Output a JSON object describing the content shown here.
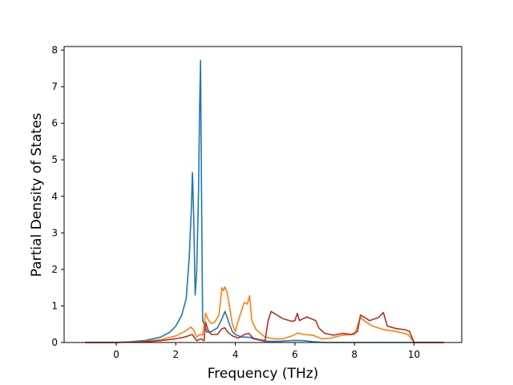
{
  "chart_data": {
    "type": "line",
    "title": "",
    "xlabel": "Frequency (THz)",
    "ylabel": "Partial Density of States",
    "xlim": [
      -1.75,
      11.6
    ],
    "ylim": [
      0,
      8.1
    ],
    "xticks": [
      0,
      2,
      4,
      6,
      8,
      10
    ],
    "yticks": [
      0,
      1,
      2,
      3,
      4,
      5,
      6,
      7,
      8
    ],
    "grid": false,
    "legend": "none",
    "colors": [
      "#1f77b4",
      "#ff7f0e",
      "#b5311c"
    ],
    "series": [
      {
        "color": "#1f77b4",
        "points": [
          [
            -1.05,
            0
          ],
          [
            0,
            0
          ],
          [
            0.5,
            0.02
          ],
          [
            1.0,
            0.06
          ],
          [
            1.5,
            0.15
          ],
          [
            1.8,
            0.28
          ],
          [
            2.0,
            0.45
          ],
          [
            2.2,
            0.75
          ],
          [
            2.35,
            1.2
          ],
          [
            2.45,
            2.3
          ],
          [
            2.52,
            3.6
          ],
          [
            2.56,
            4.65
          ],
          [
            2.6,
            3.5
          ],
          [
            2.65,
            1.3
          ],
          [
            2.7,
            1.9
          ],
          [
            2.76,
            4.0
          ],
          [
            2.8,
            6.4
          ],
          [
            2.83,
            7.72
          ],
          [
            2.86,
            4.4
          ],
          [
            2.9,
            0.6
          ],
          [
            2.95,
            0.5
          ],
          [
            3.05,
            0.28
          ],
          [
            3.2,
            0.3
          ],
          [
            3.4,
            0.4
          ],
          [
            3.55,
            0.65
          ],
          [
            3.65,
            0.85
          ],
          [
            3.72,
            0.7
          ],
          [
            3.8,
            0.5
          ],
          [
            3.9,
            0.3
          ],
          [
            4.0,
            0.22
          ],
          [
            4.2,
            0.15
          ],
          [
            4.5,
            0.14
          ],
          [
            4.6,
            0.1
          ],
          [
            5.0,
            0.03
          ],
          [
            5.5,
            0.03
          ],
          [
            6.0,
            0.06
          ],
          [
            6.3,
            0.05
          ],
          [
            6.6,
            0.02
          ],
          [
            7.0,
            0
          ],
          [
            11.0,
            0
          ]
        ]
      },
      {
        "color": "#ff7f0e",
        "points": [
          [
            -1.05,
            0
          ],
          [
            0,
            0
          ],
          [
            1.0,
            0.03
          ],
          [
            1.5,
            0.08
          ],
          [
            2.0,
            0.18
          ],
          [
            2.3,
            0.3
          ],
          [
            2.5,
            0.42
          ],
          [
            2.6,
            0.35
          ],
          [
            2.7,
            0.15
          ],
          [
            2.8,
            0.22
          ],
          [
            2.9,
            0.2
          ],
          [
            3.0,
            0.8
          ],
          [
            3.1,
            0.6
          ],
          [
            3.2,
            0.52
          ],
          [
            3.3,
            0.55
          ],
          [
            3.45,
            0.75
          ],
          [
            3.55,
            1.5
          ],
          [
            3.6,
            1.42
          ],
          [
            3.65,
            1.52
          ],
          [
            3.72,
            1.38
          ],
          [
            3.8,
            1.0
          ],
          [
            3.9,
            0.5
          ],
          [
            4.0,
            0.3
          ],
          [
            4.1,
            0.6
          ],
          [
            4.3,
            1.1
          ],
          [
            4.4,
            1.05
          ],
          [
            4.48,
            1.28
          ],
          [
            4.55,
            0.6
          ],
          [
            4.7,
            0.35
          ],
          [
            5.0,
            0.15
          ],
          [
            5.3,
            0.1
          ],
          [
            5.6,
            0.1
          ],
          [
            5.9,
            0.18
          ],
          [
            6.1,
            0.26
          ],
          [
            6.3,
            0.22
          ],
          [
            6.6,
            0.2
          ],
          [
            6.9,
            0.1
          ],
          [
            7.2,
            0.12
          ],
          [
            7.6,
            0.2
          ],
          [
            8.0,
            0.22
          ],
          [
            8.2,
            0.68
          ],
          [
            8.35,
            0.58
          ],
          [
            8.6,
            0.45
          ],
          [
            9.0,
            0.35
          ],
          [
            9.4,
            0.3
          ],
          [
            9.8,
            0.22
          ],
          [
            10.0,
            0
          ],
          [
            11.0,
            0
          ]
        ]
      },
      {
        "color": "#b5311c",
        "points": [
          [
            -1.05,
            0
          ],
          [
            0,
            0
          ],
          [
            1.0,
            0.02
          ],
          [
            1.5,
            0.05
          ],
          [
            2.0,
            0.1
          ],
          [
            2.3,
            0.15
          ],
          [
            2.55,
            0.22
          ],
          [
            2.7,
            0.05
          ],
          [
            2.85,
            0.1
          ],
          [
            2.95,
            0.05
          ],
          [
            3.0,
            0.55
          ],
          [
            3.1,
            0.3
          ],
          [
            3.2,
            0.22
          ],
          [
            3.4,
            0.22
          ],
          [
            3.55,
            0.38
          ],
          [
            3.65,
            0.4
          ],
          [
            3.75,
            0.28
          ],
          [
            3.9,
            0.18
          ],
          [
            4.1,
            0.12
          ],
          [
            4.3,
            0.22
          ],
          [
            4.45,
            0.25
          ],
          [
            4.6,
            0.12
          ],
          [
            4.8,
            0.08
          ],
          [
            5.0,
            0.05
          ],
          [
            5.1,
            0.6
          ],
          [
            5.2,
            0.85
          ],
          [
            5.4,
            0.75
          ],
          [
            5.6,
            0.65
          ],
          [
            5.9,
            0.58
          ],
          [
            6.0,
            0.6
          ],
          [
            6.08,
            0.8
          ],
          [
            6.15,
            0.6
          ],
          [
            6.4,
            0.7
          ],
          [
            6.7,
            0.6
          ],
          [
            6.8,
            0.4
          ],
          [
            7.0,
            0.25
          ],
          [
            7.3,
            0.2
          ],
          [
            7.6,
            0.25
          ],
          [
            7.9,
            0.22
          ],
          [
            8.1,
            0.3
          ],
          [
            8.2,
            0.75
          ],
          [
            8.35,
            0.68
          ],
          [
            8.5,
            0.6
          ],
          [
            8.8,
            0.68
          ],
          [
            8.97,
            0.82
          ],
          [
            9.1,
            0.45
          ],
          [
            9.4,
            0.38
          ],
          [
            9.7,
            0.35
          ],
          [
            9.85,
            0.3
          ],
          [
            10.0,
            0
          ],
          [
            11.0,
            0
          ]
        ]
      }
    ]
  }
}
